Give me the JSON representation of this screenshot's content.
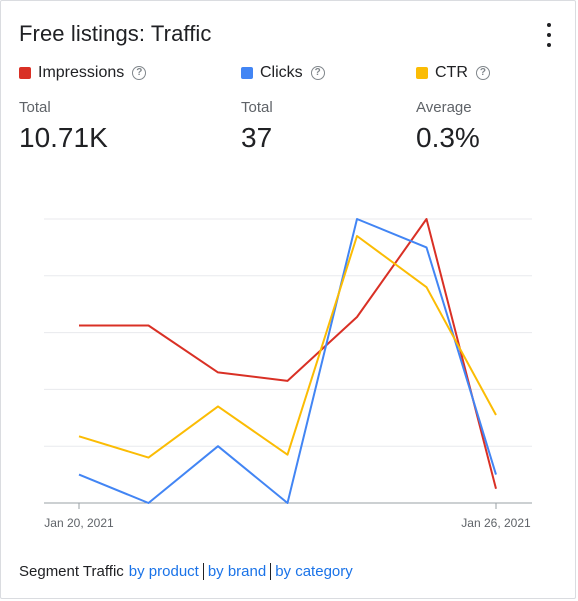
{
  "card": {
    "title": "Free listings: Traffic"
  },
  "metrics": [
    {
      "name": "Impressions",
      "agg": "Total",
      "value": "10.71K",
      "color": "#d93025"
    },
    {
      "name": "Clicks",
      "agg": "Total",
      "value": "37",
      "color": "#4285f4"
    },
    {
      "name": "CTR",
      "agg": "Average",
      "value": "0.3%",
      "color": "#fbbc04"
    }
  ],
  "chart_data": {
    "type": "line",
    "x": [
      "Jan 20, 2021",
      "Jan 21, 2021",
      "Jan 22, 2021",
      "Jan 23, 2021",
      "Jan 24, 2021",
      "Jan 25, 2021",
      "Jan 26, 2021"
    ],
    "x_tick_labels": [
      "Jan 20, 2021",
      "Jan 26, 2021"
    ],
    "grid": true,
    "series": [
      {
        "name": "Impressions",
        "color": "#d93025",
        "values": [
          0.625,
          0.625,
          0.46,
          0.43,
          0.655,
          1.0,
          0.05
        ]
      },
      {
        "name": "Clicks",
        "color": "#4285f4",
        "values": [
          0.1,
          0.0,
          0.2,
          0.0,
          1.0,
          0.9,
          0.1
        ]
      },
      {
        "name": "CTR",
        "color": "#fbbc04",
        "values": [
          0.235,
          0.16,
          0.34,
          0.17,
          0.94,
          0.76,
          0.31
        ]
      }
    ],
    "ylim": [
      0,
      1
    ]
  },
  "segment": {
    "label": "Segment Traffic",
    "links": [
      "by product",
      "by brand",
      "by category"
    ]
  }
}
